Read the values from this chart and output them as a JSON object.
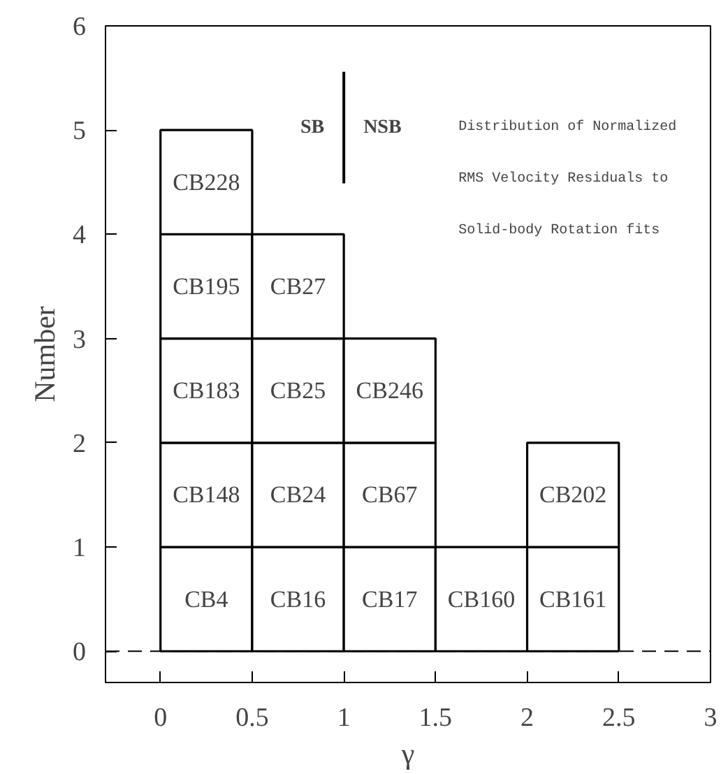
{
  "chart_data": {
    "type": "bar",
    "stacked": true,
    "xlabel": "γ",
    "ylabel": "Number",
    "x": [
      0.25,
      0.75,
      1.25,
      1.75,
      2.25
    ],
    "series": [
      {
        "color": "#ffffff",
        "values": [
          1,
          1,
          1,
          1,
          1
        ],
        "value_labels": [
          "CB4",
          "CB16",
          "CB17",
          "CB160",
          "CB161"
        ]
      },
      {
        "color": "#ffffff",
        "values": [
          1,
          1,
          1,
          null,
          1
        ],
        "value_labels": [
          "CB148",
          "CB24",
          "CB67",
          null,
          "CB202"
        ]
      },
      {
        "color": "#ffffff",
        "values": [
          1,
          1,
          1,
          null,
          null
        ],
        "value_labels": [
          "CB183",
          "CB25",
          "CB246",
          null,
          null
        ]
      },
      {
        "color": "#ffffff",
        "values": [
          1,
          1,
          null,
          null,
          null
        ],
        "value_labels": [
          "CB195",
          "CB27",
          null,
          null,
          null
        ]
      },
      {
        "color": "#ffffff",
        "values": [
          1,
          null,
          null,
          null,
          null
        ],
        "value_labels": [
          "CB228",
          null,
          null,
          null,
          null
        ]
      }
    ],
    "xlim": [
      -0.3,
      3
    ],
    "ylim": [
      -0.3,
      6
    ],
    "xticks": [
      0,
      0.5,
      1,
      1.5,
      2,
      2.5,
      3
    ],
    "yticks": [
      0,
      1,
      2,
      3,
      4,
      5,
      6
    ],
    "grid": false,
    "ref_lines": [
      {
        "axis": "y",
        "value": 0,
        "line_style": "dashed",
        "color": "#000000"
      },
      {
        "axis": "x",
        "value": 1,
        "line_style": "solid",
        "color": "#000000"
      }
    ],
    "annotations": [
      "SB",
      "NSB",
      "Distribution of Normalized",
      "RMS Velocity Residuals to",
      "Solid-body Rotation fits"
    ]
  }
}
